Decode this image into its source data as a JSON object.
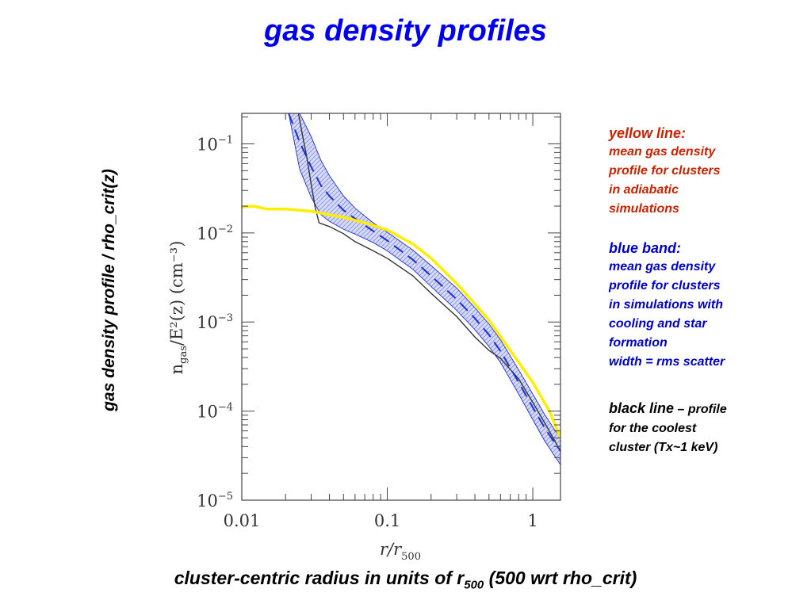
{
  "slide": {
    "title": "gas density profiles",
    "y_label": "gas density profile / rho_crit(z)",
    "x_label_main": "cluster-centric radius in units of r",
    "x_label_sub": "500",
    "x_label_tail": " (500 wrt rho_crit)"
  },
  "notes": {
    "yellow": {
      "head": "yellow line:",
      "body": "mean gas density\nprofile for clusters\nin adiabatic\nsimulations"
    },
    "blue": {
      "head": "blue band:",
      "body": "mean gas density\nprofile for clusters\nin simulations with\ncooling and star\nformation\nwidth = rms scatter"
    },
    "black": {
      "head": "black line",
      "inline": " – profile",
      "body": "for the coolest\ncluster (Tx~1 keV)"
    }
  },
  "colors": {
    "title": "#0000ee",
    "yellow_note": "#cc2200",
    "blue_note": "#0000cc",
    "band_fill": "#8f97e6",
    "band_line": "#1a2fd6",
    "yellow_line": "#ffee00",
    "black_line": "#333333"
  },
  "chart_data": {
    "type": "line",
    "xscale": "log",
    "yscale": "log",
    "xlim": [
      0.01,
      1.55
    ],
    "ylim": [
      1e-05,
      0.22
    ],
    "x_ticks": [
      {
        "value": 0.01,
        "label": "0.01"
      },
      {
        "value": 0.1,
        "label": "0.1"
      },
      {
        "value": 1,
        "label": "1"
      }
    ],
    "y_ticks": [
      {
        "value": 0.1,
        "base": "10",
        "exp": "−1"
      },
      {
        "value": 0.01,
        "base": "10",
        "exp": "−2"
      },
      {
        "value": 0.001,
        "base": "10",
        "exp": "−3"
      },
      {
        "value": 0.0001,
        "base": "10",
        "exp": "−4"
      },
      {
        "value": 1e-05,
        "base": "10",
        "exp": "−5"
      }
    ],
    "xlabel": {
      "main": "r/r",
      "sub": "500"
    },
    "ylabel": {
      "main": "n",
      "sub": "gas",
      "rest": "/E²(z)  (cm⁻³)"
    },
    "series": [
      {
        "role": "blue band (mean)",
        "style": "dashed",
        "x": [
          0.021,
          0.025,
          0.03,
          0.035,
          0.04,
          0.05,
          0.06,
          0.08,
          0.1,
          0.15,
          0.2,
          0.3,
          0.4,
          0.5,
          0.6,
          0.8,
          1.0,
          1.2,
          1.4,
          1.55
        ],
        "y": [
          0.22,
          0.105,
          0.055,
          0.034,
          0.026,
          0.018,
          0.0145,
          0.0105,
          0.0082,
          0.005,
          0.0033,
          0.0018,
          0.0011,
          0.00072,
          0.00047,
          0.00021,
          0.00011,
          6.6e-05,
          4.5e-05,
          3.6e-05
        ]
      },
      {
        "role": "blue band (upper)",
        "x": [
          0.021,
          0.025,
          0.03,
          0.035,
          0.04,
          0.05,
          0.06,
          0.08,
          0.1,
          0.15,
          0.2,
          0.3,
          0.4,
          0.5,
          0.6,
          0.8,
          1.0,
          1.2,
          1.4,
          1.55
        ],
        "y": [
          0.22,
          0.22,
          0.12,
          0.065,
          0.044,
          0.026,
          0.019,
          0.013,
          0.0102,
          0.0064,
          0.0043,
          0.0024,
          0.00145,
          0.00095,
          0.00063,
          0.00029,
          0.000155,
          9.3e-05,
          6.3e-05,
          5e-05
        ]
      },
      {
        "role": "blue band (lower)",
        "x": [
          0.021,
          0.025,
          0.03,
          0.035,
          0.04,
          0.05,
          0.06,
          0.08,
          0.1,
          0.15,
          0.2,
          0.3,
          0.4,
          0.5,
          0.6,
          0.8,
          1.0,
          1.2,
          1.4,
          1.55
        ],
        "y": [
          0.22,
          0.052,
          0.025,
          0.016,
          0.0135,
          0.011,
          0.0097,
          0.0078,
          0.0063,
          0.0039,
          0.0025,
          0.00135,
          0.00082,
          0.00053,
          0.00035,
          0.000155,
          8e-05,
          4.7e-05,
          3.2e-05,
          2.5e-05
        ]
      },
      {
        "role": "yellow line",
        "x": [
          0.01,
          0.012,
          0.015,
          0.02,
          0.03,
          0.04,
          0.05,
          0.07,
          0.1,
          0.15,
          0.2,
          0.3,
          0.4,
          0.5,
          0.7,
          1.0,
          1.3,
          1.55
        ],
        "y": [
          0.0195,
          0.02,
          0.0185,
          0.0185,
          0.0175,
          0.016,
          0.015,
          0.013,
          0.0108,
          0.0075,
          0.0052,
          0.0027,
          0.0016,
          0.00105,
          0.00048,
          0.00021,
          0.0001,
          5e-05
        ]
      },
      {
        "role": "black line",
        "x": [
          0.0245,
          0.026,
          0.028,
          0.03,
          0.032,
          0.034,
          0.04,
          0.05,
          0.06,
          0.08,
          0.1,
          0.15,
          0.2,
          0.3,
          0.4,
          0.5,
          0.6,
          0.8,
          1.0,
          1.2,
          1.4,
          1.55
        ],
        "y": [
          0.22,
          0.13,
          0.07,
          0.035,
          0.019,
          0.013,
          0.0118,
          0.0098,
          0.008,
          0.0063,
          0.0052,
          0.0033,
          0.0021,
          0.00115,
          0.00068,
          0.00048,
          0.00039,
          0.00023,
          0.000125,
          7.5e-05,
          4.8e-05,
          3.5e-05
        ]
      }
    ]
  }
}
